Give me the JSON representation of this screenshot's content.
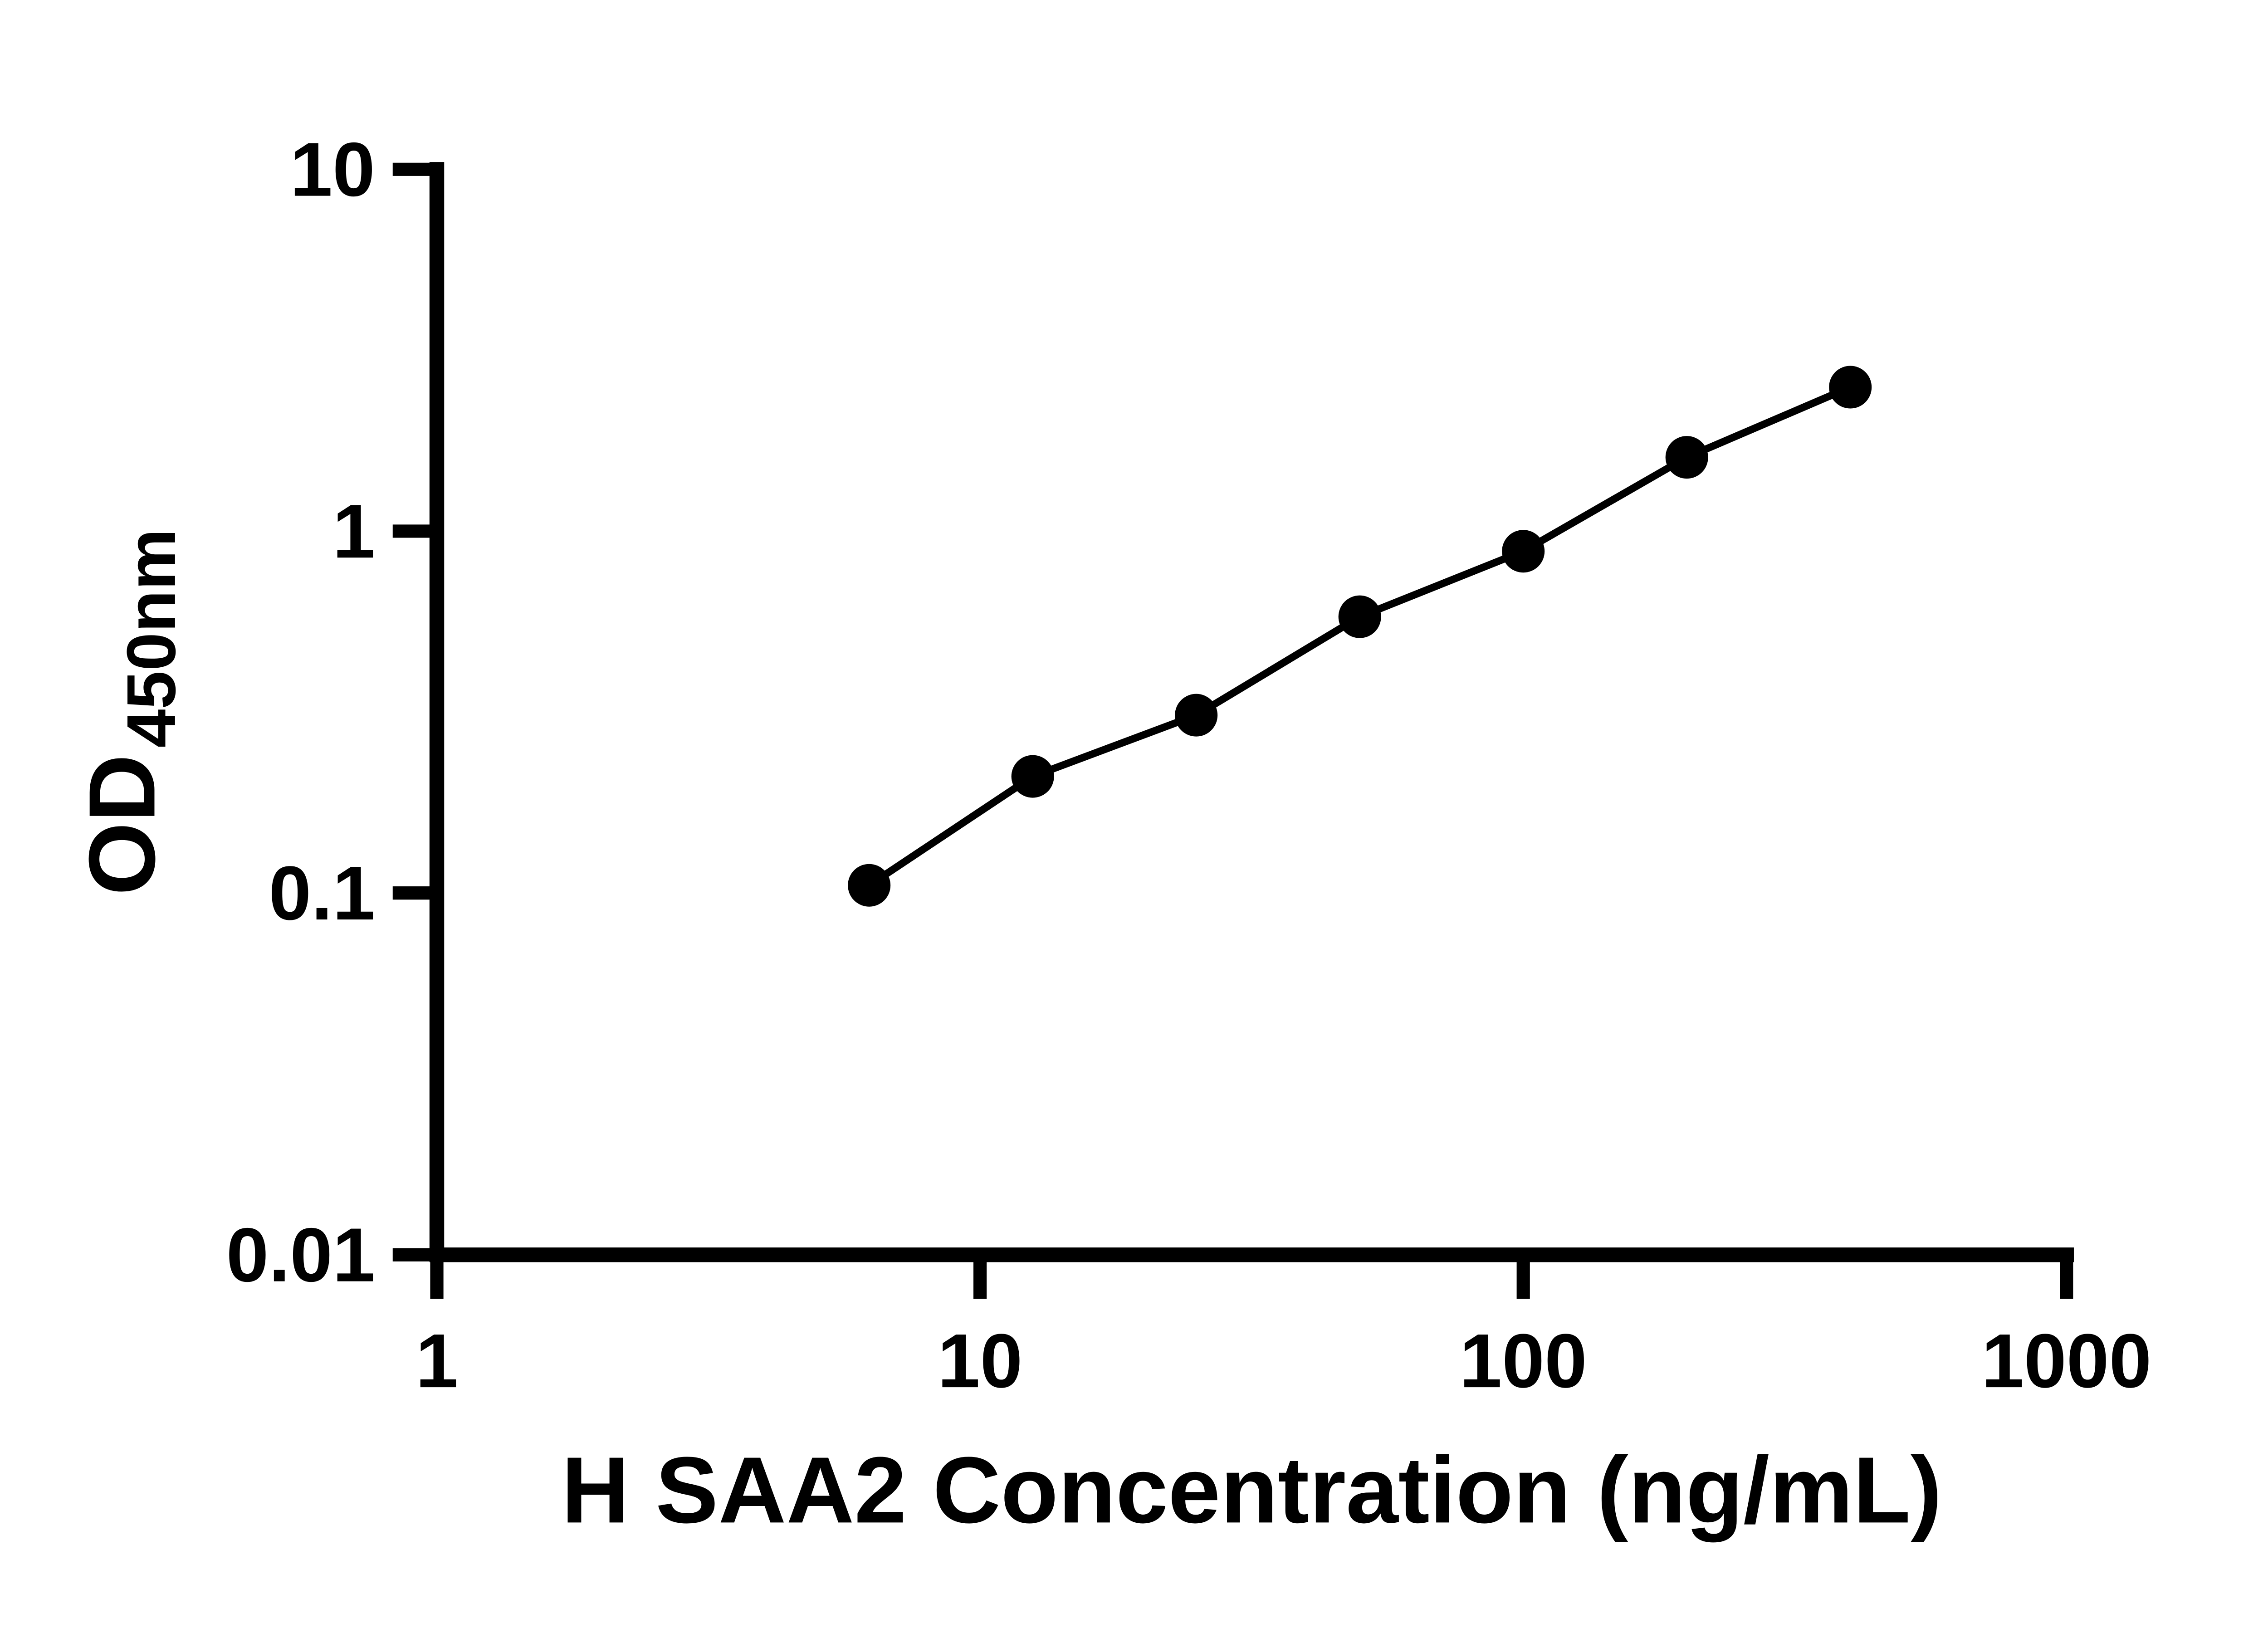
{
  "chart_data": {
    "type": "scatter",
    "title": "",
    "xlabel": "H SAA2 Concentration (ng/mL)",
    "ylabel_main": "OD",
    "ylabel_sub": "450nm",
    "x_scale": "log",
    "y_scale": "log",
    "xlim": [
      1,
      1000
    ],
    "ylim": [
      0.01,
      10
    ],
    "x_ticks": [
      1,
      10,
      100,
      1000
    ],
    "x_tick_labels": [
      "1",
      "10",
      "100",
      "1000"
    ],
    "y_ticks": [
      0.01,
      0.1,
      1,
      10
    ],
    "y_tick_labels": [
      "0.01",
      "0.1",
      "1",
      "10"
    ],
    "grid": "off",
    "legend": "none",
    "points": [
      {
        "x": 6.25,
        "y": 0.105
      },
      {
        "x": 12.5,
        "y": 0.21
      },
      {
        "x": 25,
        "y": 0.31
      },
      {
        "x": 50,
        "y": 0.58
      },
      {
        "x": 100,
        "y": 0.88
      },
      {
        "x": 200,
        "y": 1.6
      },
      {
        "x": 400,
        "y": 2.5
      }
    ],
    "colors": {
      "background": "#ffffff",
      "axis": "#000000",
      "line": "#000000",
      "point": "#000000"
    }
  }
}
